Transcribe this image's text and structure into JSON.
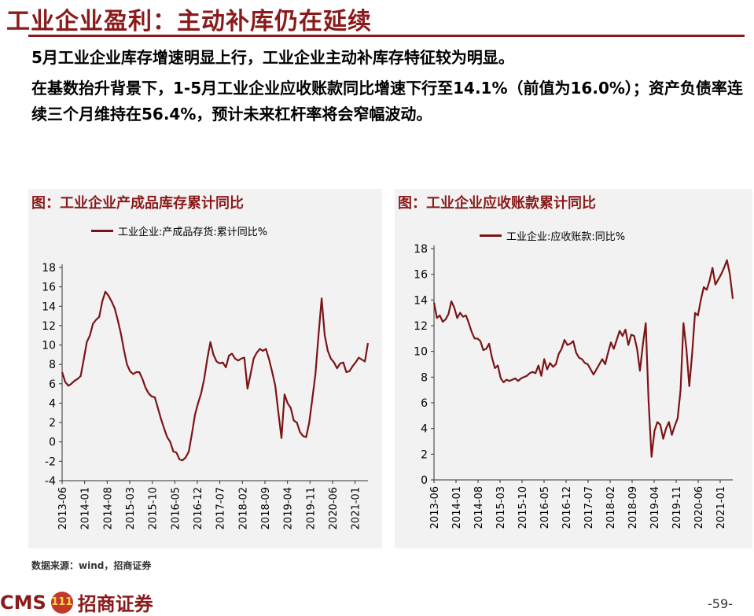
{
  "header": {
    "title": "工业企业盈利：主动补库仍在延续",
    "line1": "5月工业企业库存增速明显上行，工业企业主动补库存特征较为明显。",
    "line2": "在基数抬升背景下，1-5月工业企业应收账款同比增速下行至14.1%（前值为16.0%）；资产负债率连续三个月维持在56.4%，预计未来杠杆率将会窄幅波动。"
  },
  "footer": {
    "source": "数据来源：wind，招商证券",
    "logo_cms": "CMS",
    "logo_circle": "111",
    "logo_name": "招商证券",
    "page": "-59-"
  },
  "colors": {
    "accent": "#8b1a1a",
    "line": "#7b1416",
    "panel_bg": "#f2f2f2"
  },
  "chart_data": [
    {
      "type": "line",
      "title": "图：工业企业产成品库存累计同比",
      "series": [
        {
          "name": "工业企业:产成品存货:累计同比%",
          "values": [
            7.2,
            6.2,
            5.8,
            6.0,
            6.3,
            6.5,
            6.8,
            8.5,
            10.3,
            11.0,
            12.2,
            12.6,
            12.9,
            14.5,
            15.5,
            15.1,
            14.5,
            13.8,
            12.6,
            11.2,
            9.5,
            8.0,
            7.3,
            7.0,
            7.2,
            7.2,
            6.5,
            5.6,
            5.0,
            4.7,
            4.6,
            3.5,
            2.4,
            1.4,
            0.5,
            0.0,
            -1.0,
            -1.1,
            -1.8,
            -1.9,
            -1.6,
            -1.0,
            0.8,
            2.8,
            4.0,
            5.0,
            6.5,
            8.6,
            10.3,
            9.0,
            8.3,
            8.1,
            8.2,
            7.7,
            8.9,
            9.1,
            8.6,
            8.4,
            8.6,
            8.7,
            5.5,
            7.0,
            8.6,
            9.2,
            9.6,
            9.4,
            9.6,
            8.5,
            7.2,
            5.8,
            3.0,
            0.4,
            4.9,
            4.0,
            3.5,
            2.2,
            2.0,
            1.0,
            0.6,
            0.5,
            2.0,
            4.5,
            7.0,
            11.0,
            14.8,
            11.0,
            9.4,
            8.6,
            8.2,
            7.6,
            8.1,
            8.2,
            7.2,
            7.3,
            7.8,
            8.2,
            8.7,
            8.5,
            8.3,
            10.2
          ]
        }
      ],
      "x_ticks": [
        "2013-06",
        "2014-01",
        "2014-08",
        "2015-03",
        "2015-10",
        "2016-05",
        "2016-12",
        "2017-07",
        "2018-02",
        "2018-09",
        "2019-04",
        "2019-11",
        "2020-06",
        "2021-01"
      ],
      "xlim": [
        "2013-06",
        "2021-05"
      ],
      "y_ticks": [
        -4,
        -2,
        0,
        2,
        4,
        6,
        8,
        10,
        12,
        14,
        16,
        18
      ],
      "ylim": [
        -4,
        18
      ],
      "legend_position": "top",
      "grid": false
    },
    {
      "type": "line",
      "title": "图：工业企业应收账款累计同比",
      "series": [
        {
          "name": "工业企业:应收账款:同比%",
          "values": [
            13.8,
            12.6,
            12.8,
            12.3,
            12.5,
            12.9,
            13.9,
            13.4,
            12.6,
            13.0,
            12.7,
            12.8,
            12.2,
            11.5,
            11.0,
            11.0,
            10.8,
            10.1,
            10.2,
            10.6,
            9.5,
            8.7,
            8.9,
            7.9,
            7.6,
            7.8,
            7.7,
            7.8,
            7.9,
            7.7,
            7.9,
            8.0,
            8.1,
            8.3,
            8.4,
            8.3,
            8.9,
            8.1,
            9.4,
            8.6,
            9.1,
            8.8,
            9.0,
            9.8,
            10.2,
            10.9,
            10.5,
            10.6,
            10.8,
            9.9,
            9.5,
            9.4,
            9.1,
            9.0,
            8.6,
            8.2,
            8.6,
            9.0,
            9.4,
            9.0,
            9.9,
            10.7,
            10.2,
            10.9,
            11.6,
            11.2,
            11.7,
            10.5,
            11.3,
            11.2,
            10.2,
            8.5,
            10.5,
            12.2,
            6.0,
            1.8,
            3.8,
            4.5,
            4.3,
            3.2,
            4.0,
            4.5,
            3.5,
            4.2,
            4.8,
            7.0,
            12.2,
            10.2,
            7.3,
            9.8,
            13.0,
            12.8,
            14.0,
            15.0,
            14.8,
            15.5,
            16.5,
            15.2,
            15.6,
            16.0,
            16.5,
            17.1,
            16.0,
            14.1
          ]
        }
      ],
      "x_ticks": [
        "2013-06",
        "2014-01",
        "2014-08",
        "2015-03",
        "2015-10",
        "2016-05",
        "2016-12",
        "2017-07",
        "2018-02",
        "2018-09",
        "2019-04",
        "2019-11",
        "2020-06",
        "2021-01"
      ],
      "xlim": [
        "2013-06",
        "2021-05"
      ],
      "y_ticks": [
        0,
        2,
        4,
        6,
        8,
        10,
        12,
        14,
        16,
        18
      ],
      "ylim": [
        0,
        18
      ],
      "legend_position": "top",
      "grid": false
    }
  ]
}
